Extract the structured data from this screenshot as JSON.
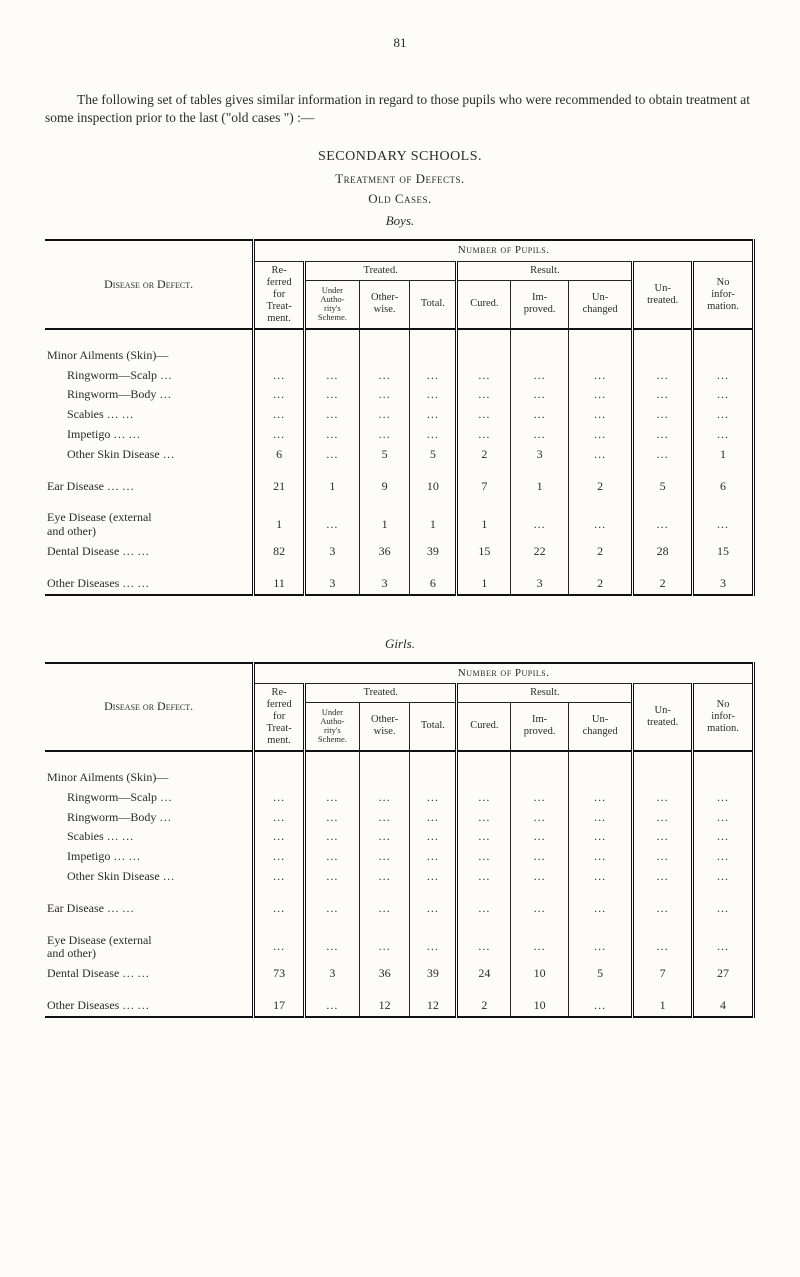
{
  "page_number": "81",
  "intro": "The following set of tables gives similar information in regard to those pupils who were recommended to obtain treatment at some inspection prior to the last (\"old cases \") :—",
  "heading_secondary": "SECONDARY SCHOOLS.",
  "heading_treatment": "Treatment of Defects.",
  "heading_oldcases": "Old Cases.",
  "heading_boys": "Boys.",
  "heading_girls": "Girls.",
  "col": {
    "number_of_pupils": "Number of Pupils.",
    "disease": "Disease or Defect.",
    "referred": "Re-\nferred\nfor\nTreat-\nment.",
    "treated": "Treated.",
    "under_auth": "Under\nAutho-\nrity's\nScheme.",
    "otherwise": "Other-\nwise.",
    "total": "Total.",
    "result": "Result.",
    "cured": "Cured.",
    "improved": "Im-\nproved.",
    "unchanged": "Un-\nchanged",
    "untreated": "Un-\ntreated.",
    "noinfo": "No\ninfor-\nmation."
  },
  "row_labels": {
    "minor": "Minor Ailments (Skin)—",
    "ringworm_scalp": "Ringworm—Scalp  …",
    "ringworm_body": "Ringworm—Body   …",
    "scabies": "Scabies            …    …",
    "impetigo": "Impetigo         …    …",
    "other_skin": "Other Skin Disease  …",
    "ear": "Ear Disease        …    …",
    "eye": "Eye Disease (external\n    and other)",
    "dental": "Dental Disease …    …",
    "other": "Other Diseases …    …"
  },
  "boys": {
    "ringworm_scalp": [
      "…",
      "…",
      "…",
      "…",
      "…",
      "…",
      "…",
      "…",
      "…"
    ],
    "ringworm_body": [
      "…",
      "…",
      "…",
      "…",
      "…",
      "…",
      "…",
      "…",
      "…"
    ],
    "scabies": [
      "…",
      "…",
      "…",
      "…",
      "…",
      "…",
      "…",
      "…",
      "…"
    ],
    "impetigo": [
      "…",
      "…",
      "…",
      "…",
      "…",
      "…",
      "…",
      "…",
      "…"
    ],
    "other_skin": [
      "6",
      "…",
      "5",
      "5",
      "2",
      "3",
      "…",
      "…",
      "1"
    ],
    "ear": [
      "21",
      "1",
      "9",
      "10",
      "7",
      "1",
      "2",
      "5",
      "6"
    ],
    "eye": [
      "1",
      "…",
      "1",
      "1",
      "1",
      "…",
      "…",
      "…",
      "…"
    ],
    "dental": [
      "82",
      "3",
      "36",
      "39",
      "15",
      "22",
      "2",
      "28",
      "15"
    ],
    "other": [
      "11",
      "3",
      "3",
      "6",
      "1",
      "3",
      "2",
      "2",
      "3"
    ]
  },
  "girls": {
    "ringworm_scalp": [
      "…",
      "…",
      "…",
      "…",
      "…",
      "…",
      "…",
      "…",
      "…"
    ],
    "ringworm_body": [
      "…",
      "…",
      "…",
      "…",
      "…",
      "…",
      "…",
      "…",
      "…"
    ],
    "scabies": [
      "…",
      "…",
      "…",
      "…",
      "…",
      "…",
      "…",
      "…",
      "…"
    ],
    "impetigo": [
      "…",
      "…",
      "…",
      "…",
      "…",
      "…",
      "…",
      "…",
      "…"
    ],
    "other_skin": [
      "…",
      "…",
      "…",
      "…",
      "…",
      "…",
      "…",
      "…",
      "…"
    ],
    "ear": [
      "…",
      "…",
      "…",
      "…",
      "…",
      "…",
      "…",
      "…",
      "…"
    ],
    "eye": [
      "…",
      "…",
      "…",
      "…",
      "…",
      "…",
      "…",
      "…",
      "…"
    ],
    "dental": [
      "73",
      "3",
      "36",
      "39",
      "24",
      "10",
      "5",
      "7",
      "27"
    ],
    "other": [
      "17",
      "…",
      "12",
      "12",
      "2",
      "10",
      "…",
      "1",
      "4"
    ]
  }
}
